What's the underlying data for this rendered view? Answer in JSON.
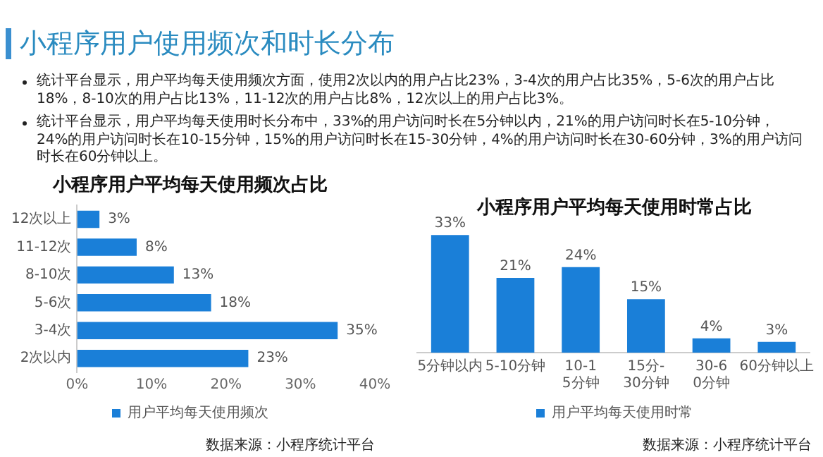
{
  "chart_data": [
    {
      "type": "other",
      "title": "小程序用户使用频次和时长分布",
      "annotations": [
        "统计平台显示，用户平均每天使用频次方面，使用2次以内的用户占比23%，3-4次的用户占比35%，5-6次的用户占比18%，8-10次的用户占比13%，11-12次的用户占比8%，12次以上的用户占比3%。",
        "统计平台显示，用户平均每天使用时长分布中，33%的用户访问时长在5分钟以内，21%的用户访问时长在5-10分钟，24%的用户访问时长在10-15分钟，15%的用户访问时长在15-30分钟，4%的用户访问时长在30-60分钟，3%的用户访问时长在60分钟以上。"
      ]
    },
    {
      "type": "bar",
      "orientation": "horizontal",
      "title": "小程序用户平均每天使用频次占比",
      "categories": [
        "12次以上",
        "11-12次",
        "8-10次",
        "5-6次",
        "3-4次",
        "2次以内"
      ],
      "series": [
        {
          "name": "用户平均每天使用频次",
          "color": "#1a7fd8",
          "values": [
            3,
            8,
            13,
            18,
            35,
            23
          ],
          "value_labels": [
            "3%",
            "8%",
            "13%",
            "18%",
            "35%",
            "23%"
          ]
        }
      ],
      "xlim": [
        0,
        40
      ],
      "xticks": [
        {
          "value": 0,
          "label": "0%"
        },
        {
          "value": 10,
          "label": "10%"
        },
        {
          "value": 20,
          "label": "20%"
        },
        {
          "value": 30,
          "label": "30%"
        },
        {
          "value": 40,
          "label": "40%"
        }
      ],
      "grid": false,
      "legend": "bottom",
      "annotations": [
        "数据来源：小程序统计平台"
      ]
    },
    {
      "type": "bar",
      "title": "小程序用户平均每天使用时常占比",
      "categories": [
        "5分钟以内",
        "5-10分钟",
        "10-15分钟",
        "15分-30分钟",
        "30-60分钟",
        "60分钟以上"
      ],
      "series": [
        {
          "name": "用户平均每天使用时常",
          "color": "#1a7fd8",
          "values": [
            33,
            21,
            24,
            15,
            4,
            3
          ],
          "value_labels": [
            "33%",
            "21%",
            "24%",
            "15%",
            "4%",
            "3%"
          ]
        }
      ],
      "tick_labels": "x",
      "grid": false,
      "legend": "bottom",
      "annotations": [
        "数据来源：小程序统计平台"
      ]
    }
  ]
}
